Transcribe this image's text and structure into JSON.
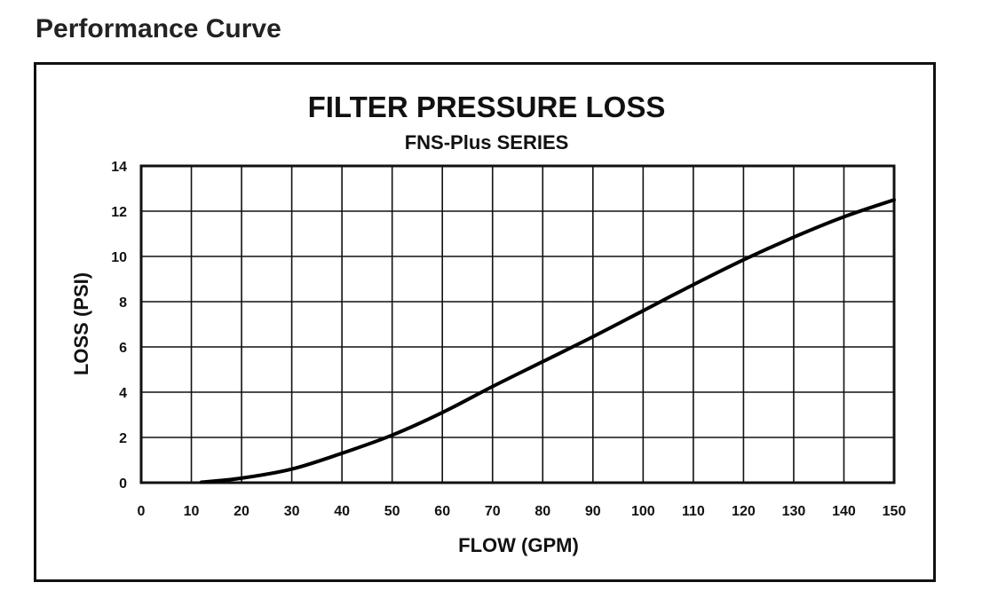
{
  "page": {
    "heading": "Performance Curve"
  },
  "chart_data": {
    "type": "line",
    "title": "FILTER PRESSURE LOSS",
    "subtitle": "FNS-Plus SERIES",
    "xlabel": "FLOW (GPM)",
    "ylabel": "LOSS (PSI)",
    "xlim": [
      0,
      150
    ],
    "ylim": [
      0,
      14
    ],
    "xticks": [
      0,
      10,
      20,
      30,
      40,
      50,
      60,
      70,
      80,
      90,
      100,
      110,
      120,
      130,
      140,
      150
    ],
    "yticks": [
      0,
      2,
      4,
      6,
      8,
      10,
      12,
      14
    ],
    "grid": true,
    "series": [
      {
        "x": [
          12,
          20,
          30,
          40,
          50,
          60,
          70,
          80,
          90,
          100,
          110,
          120,
          130,
          140,
          150
        ],
        "y": [
          0.02,
          0.2,
          0.6,
          1.3,
          2.1,
          3.1,
          4.25,
          5.35,
          6.45,
          7.6,
          8.75,
          9.85,
          10.85,
          11.75,
          12.5
        ]
      }
    ]
  }
}
